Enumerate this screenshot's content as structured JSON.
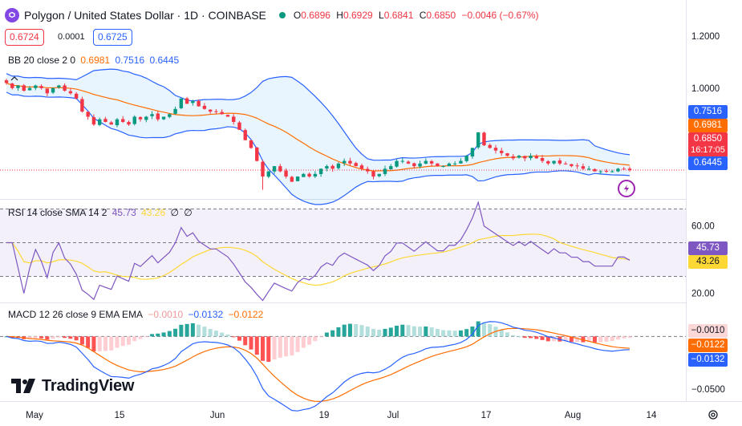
{
  "header": {
    "title": "Polygon / United States Dollar · 1D · COINBASE",
    "ohlc": [
      {
        "key": "O",
        "value": "0.6896"
      },
      {
        "key": "H",
        "value": "0.6929"
      },
      {
        "key": "L",
        "value": "0.6841"
      },
      {
        "key": "C",
        "value": "0.6850"
      }
    ],
    "change": "−0.0046 (−0.67%)"
  },
  "trade": {
    "sell": "0.6724",
    "spread": "0.0001",
    "buy": "0.6725"
  },
  "indicators": {
    "bb": {
      "label": "BB 20 close 2 0",
      "basis": "0.6981",
      "upper": "0.7516",
      "lower": "0.6445"
    },
    "rsi": {
      "label": "RSI 14 close SMA 14 2",
      "rsi": "45.73",
      "sma": "43.26",
      "extra1": "∅",
      "extra2": "∅"
    },
    "macd": {
      "label": "MACD 12 26 close 9 EMA EMA",
      "hist": "−0.0010",
      "macd": "−0.0132",
      "signal": "−0.0122"
    }
  },
  "price_axis": {
    "labels": [
      "1.2000",
      "1.0000"
    ],
    "tags": {
      "upper": "0.7516",
      "basis": "0.6981",
      "last": "0.6850",
      "countdown": "16:17:05",
      "lower": "0.6445"
    }
  },
  "rsi_axis": {
    "labels": [
      "60.00",
      "20.00"
    ],
    "tags": {
      "rsi": "45.73",
      "sma": "43.26"
    }
  },
  "macd_axis": {
    "labels": [
      "−0.0500"
    ],
    "tags": {
      "hist": "−0.0010",
      "signal": "−0.0122",
      "macd": "−0.0132"
    }
  },
  "time_axis": [
    "May",
    "15",
    "Jun",
    "19",
    "Jul",
    "17",
    "Aug",
    "14"
  ],
  "brand": "TradingView",
  "colors": {
    "up": "#089981",
    "down": "#f23645",
    "bb_band": "#2962ff",
    "bb_basis": "#ff6d00",
    "rsi": "#7e57c2",
    "rsi_sma": "#fdd835",
    "macd": "#2962ff",
    "signal": "#ff6d00"
  },
  "chart_data": [
    {
      "type": "candlestick",
      "title": "Polygon / United States Dollar · 1D · COINBASE",
      "ylim": [
        0.58,
        1.24
      ],
      "series_note": "approximate daily closes, May–Aug",
      "closes": [
        1.02,
        1.0,
        1.01,
        0.99,
        1.0,
        1.01,
        1.0,
        0.98,
        1.0,
        1.01,
        0.99,
        0.98,
        0.96,
        0.91,
        0.89,
        0.86,
        0.88,
        0.87,
        0.86,
        0.88,
        0.87,
        0.86,
        0.89,
        0.88,
        0.89,
        0.9,
        0.88,
        0.89,
        0.9,
        0.92,
        0.96,
        0.94,
        0.95,
        0.93,
        0.92,
        0.91,
        0.91,
        0.9,
        0.89,
        0.87,
        0.84,
        0.8,
        0.77,
        0.72,
        0.66,
        0.68,
        0.7,
        0.68,
        0.66,
        0.64,
        0.66,
        0.67,
        0.66,
        0.67,
        0.69,
        0.7,
        0.69,
        0.71,
        0.72,
        0.71,
        0.7,
        0.69,
        0.68,
        0.66,
        0.67,
        0.69,
        0.7,
        0.72,
        0.72,
        0.71,
        0.7,
        0.71,
        0.72,
        0.71,
        0.7,
        0.7,
        0.71,
        0.71,
        0.72,
        0.74,
        0.77,
        0.83,
        0.78,
        0.77,
        0.76,
        0.75,
        0.74,
        0.73,
        0.74,
        0.73,
        0.74,
        0.73,
        0.72,
        0.71,
        0.72,
        0.71,
        0.71,
        0.7,
        0.7,
        0.69,
        0.69,
        0.68,
        0.68,
        0.68,
        0.68,
        0.69,
        0.69,
        0.685
      ]
    },
    {
      "type": "line",
      "title": "RSI 14 close SMA 14 2",
      "ylim": [
        15,
        75
      ],
      "bands": [
        30,
        50,
        70
      ]
    },
    {
      "type": "bar",
      "title": "MACD 12 26 close 9 EMA EMA",
      "ylim": [
        -0.06,
        0.03
      ]
    }
  ]
}
